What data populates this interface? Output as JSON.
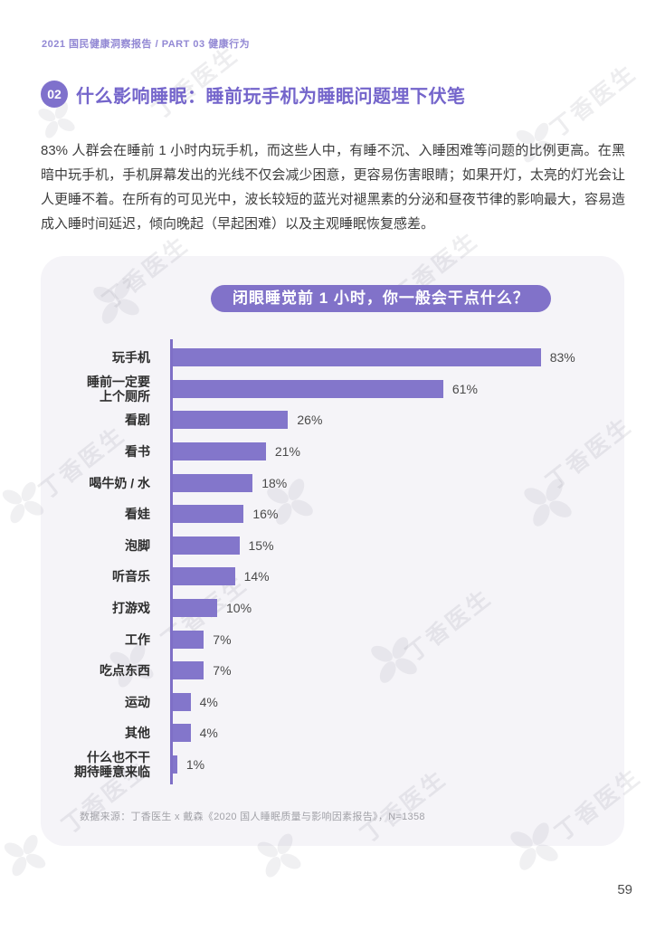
{
  "header": {
    "breadcrumb": "2021 国民健康洞察报告 / PART 03 健康行为",
    "section_number": "02",
    "title": "什么影响睡眠：睡前玩手机为睡眠问题埋下伏笔"
  },
  "body": {
    "paragraph": "83% 人群会在睡前 1 小时内玩手机，而这些人中，有睡不沉、入睡困难等问题的比例更高。在黑暗中玩手机，手机屏幕发出的光线不仅会减少困意，更容易伤害眼睛；如果开灯，太亮的灯光会让人更睡不着。在所有的可见光中，波长较短的蓝光对褪黑素的分泌和昼夜节律的影响最大，容易造成入睡时间延迟，倾向晚起（早起困难）以及主观睡眠恢复感差。"
  },
  "chart_data": {
    "type": "bar",
    "orientation": "horizontal",
    "title": "闭眼睡觉前 1 小时，你一般会干点什么？",
    "categories": [
      "玩手机",
      "睡前一定要\n上个厕所",
      "看剧",
      "看书",
      "喝牛奶 / 水",
      "看娃",
      "泡脚",
      "听音乐",
      "打游戏",
      "工作",
      "吃点东西",
      "运动",
      "其他",
      "什么也不干\n期待睡意来临"
    ],
    "values": [
      83,
      61,
      26,
      21,
      18,
      16,
      15,
      14,
      10,
      7,
      7,
      4,
      4,
      1
    ],
    "value_labels": [
      "83%",
      "61%",
      "26%",
      "21%",
      "18%",
      "16%",
      "15%",
      "14%",
      "10%",
      "7%",
      "7%",
      "4%",
      "4%",
      "1%"
    ],
    "xlim": [
      0,
      90
    ],
    "bar_color": "#8376cb",
    "axis_color": "#7e6fc6",
    "grid": false,
    "legend": "none",
    "source": "数据来源：丁香医生 x 戴森《2020 国人睡眠质量与影响因素报告》，N=1358"
  },
  "watermark": {
    "text": "丁香医生"
  },
  "footer": {
    "page_number": "59"
  },
  "colors": {
    "accent": "#7465cb",
    "badge_bg": "#7f71cc",
    "pill_bg": "#8172c9",
    "bar": "#8376cb",
    "card_bg": "#f5f4f8",
    "breadcrumb": "#9288d4"
  }
}
